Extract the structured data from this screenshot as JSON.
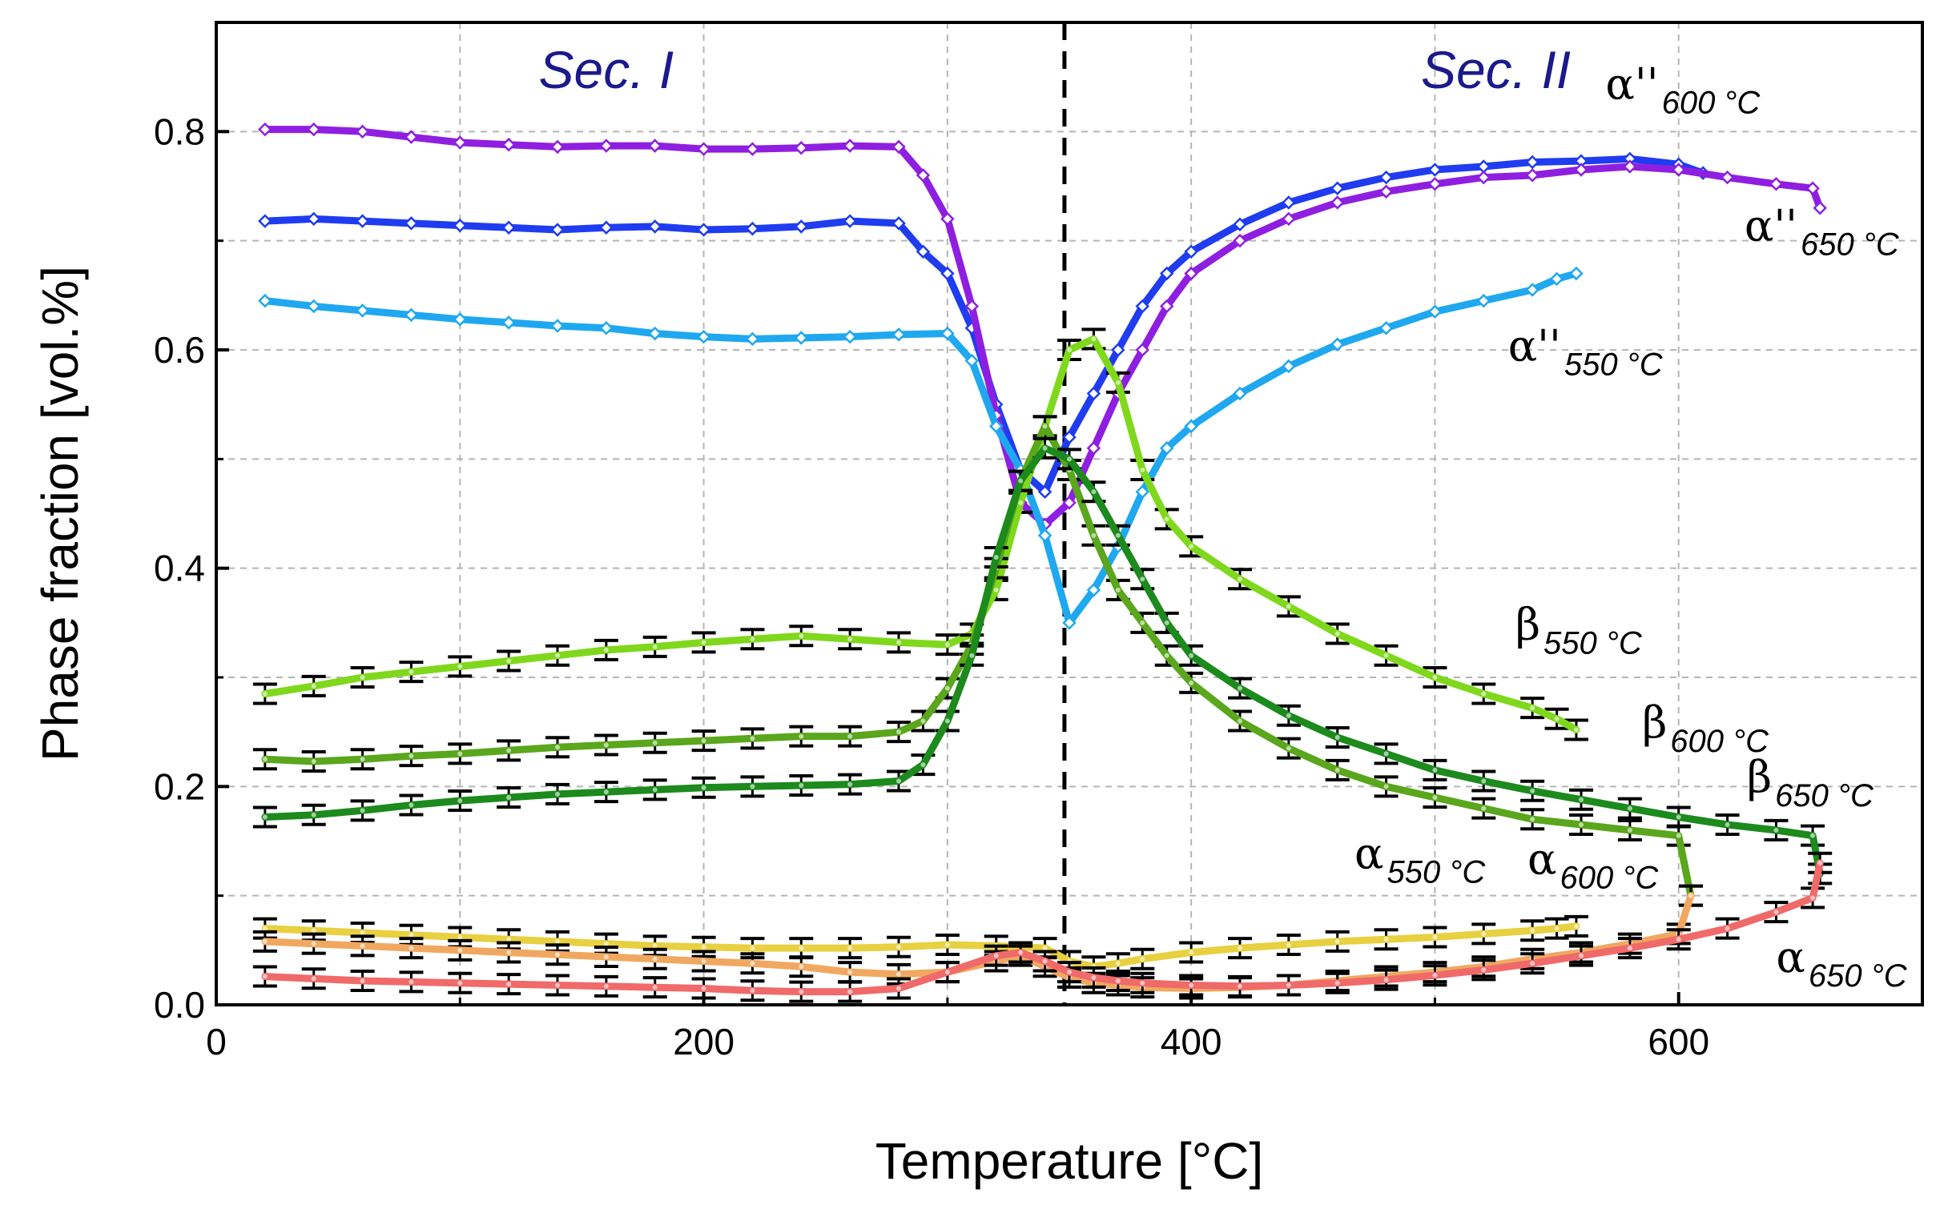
{
  "chart_data": {
    "type": "line",
    "title": "",
    "xlabel": "Temperature [°C]",
    "ylabel": "Phase fraction [vol.%]",
    "xlim": [
      0,
      700
    ],
    "ylim": [
      0,
      0.9
    ],
    "xticks": [
      0,
      200,
      400,
      600
    ],
    "xtick_labels": [
      "0",
      "200",
      "400",
      "600"
    ],
    "yticks": [
      0.0,
      0.2,
      0.4,
      0.6,
      0.8
    ],
    "ytick_labels": [
      "0.0",
      "0.2",
      "0.4",
      "0.6",
      "0.8"
    ],
    "grid": true,
    "divider_x": 348,
    "sections": [
      {
        "label": "Sec. I",
        "x": 160,
        "y": 0.84
      },
      {
        "label": "Sec. II",
        "x": 525,
        "y": 0.84
      }
    ],
    "series": [
      {
        "name": "α''600 °C",
        "label_main": "α''",
        "label_sub": "600 °C",
        "color": "#1f3cf0",
        "label_x": 570,
        "label_y": 0.83,
        "marker": true,
        "errbars": false,
        "x": [
          20,
          40,
          60,
          80,
          100,
          120,
          140,
          160,
          180,
          200,
          220,
          240,
          260,
          280,
          290,
          300,
          310,
          320,
          330,
          340,
          350,
          360,
          370,
          380,
          390,
          400,
          420,
          440,
          460,
          480,
          500,
          520,
          540,
          560,
          580,
          600,
          610
        ],
        "y": [
          0.718,
          0.72,
          0.718,
          0.716,
          0.714,
          0.712,
          0.71,
          0.712,
          0.713,
          0.71,
          0.711,
          0.713,
          0.718,
          0.716,
          0.69,
          0.67,
          0.62,
          0.55,
          0.49,
          0.47,
          0.52,
          0.56,
          0.6,
          0.64,
          0.67,
          0.69,
          0.715,
          0.735,
          0.748,
          0.758,
          0.765,
          0.768,
          0.772,
          0.773,
          0.775,
          0.77,
          0.762
        ]
      },
      {
        "name": "α''650 °C",
        "label_main": "α''",
        "label_sub": "650 °C",
        "color": "#8f1fe0",
        "label_x": 627,
        "label_y": 0.7,
        "marker": true,
        "errbars": false,
        "x": [
          20,
          40,
          60,
          80,
          100,
          120,
          140,
          160,
          180,
          200,
          220,
          240,
          260,
          280,
          290,
          300,
          310,
          320,
          330,
          340,
          350,
          360,
          370,
          380,
          390,
          400,
          420,
          440,
          460,
          480,
          500,
          520,
          540,
          560,
          580,
          600,
          620,
          640,
          655,
          658
        ],
        "y": [
          0.802,
          0.802,
          0.8,
          0.795,
          0.79,
          0.788,
          0.786,
          0.787,
          0.787,
          0.784,
          0.784,
          0.785,
          0.787,
          0.786,
          0.76,
          0.72,
          0.64,
          0.54,
          0.46,
          0.44,
          0.46,
          0.51,
          0.56,
          0.6,
          0.64,
          0.67,
          0.7,
          0.72,
          0.735,
          0.745,
          0.752,
          0.758,
          0.76,
          0.765,
          0.768,
          0.765,
          0.758,
          0.752,
          0.748,
          0.73
        ]
      },
      {
        "name": "α''550 °C",
        "label_main": "α''",
        "label_sub": "550 °C",
        "color": "#1fa8f0",
        "label_x": 530,
        "label_y": 0.59,
        "marker": true,
        "errbars": false,
        "x": [
          20,
          40,
          60,
          80,
          100,
          120,
          140,
          160,
          180,
          200,
          220,
          240,
          260,
          280,
          300,
          310,
          320,
          330,
          340,
          350,
          360,
          370,
          380,
          390,
          400,
          420,
          440,
          460,
          480,
          500,
          520,
          540,
          550,
          558
        ],
        "y": [
          0.645,
          0.64,
          0.636,
          0.632,
          0.628,
          0.625,
          0.622,
          0.62,
          0.615,
          0.612,
          0.61,
          0.611,
          0.612,
          0.614,
          0.615,
          0.59,
          0.53,
          0.49,
          0.43,
          0.35,
          0.38,
          0.42,
          0.47,
          0.51,
          0.53,
          0.56,
          0.585,
          0.605,
          0.62,
          0.635,
          0.645,
          0.655,
          0.665,
          0.67
        ]
      },
      {
        "name": "β550 °C",
        "label_main": "β",
        "label_sub": "550 °C",
        "color": "#7fd81c",
        "label_x": 533,
        "label_y": 0.335,
        "marker": false,
        "errbars": true,
        "x": [
          20,
          40,
          60,
          80,
          100,
          120,
          140,
          160,
          180,
          200,
          220,
          240,
          260,
          280,
          300,
          310,
          320,
          330,
          340,
          350,
          360,
          370,
          380,
          390,
          400,
          420,
          440,
          460,
          480,
          500,
          520,
          540,
          550,
          558
        ],
        "y": [
          0.285,
          0.292,
          0.3,
          0.305,
          0.31,
          0.315,
          0.32,
          0.325,
          0.328,
          0.332,
          0.335,
          0.338,
          0.335,
          0.332,
          0.33,
          0.34,
          0.38,
          0.46,
          0.53,
          0.6,
          0.61,
          0.57,
          0.49,
          0.445,
          0.42,
          0.39,
          0.365,
          0.34,
          0.32,
          0.3,
          0.285,
          0.272,
          0.262,
          0.252
        ]
      },
      {
        "name": "β600 °C",
        "label_main": "β",
        "label_sub": "600 °C",
        "color": "#5aa61c",
        "label_x": 585,
        "label_y": 0.245,
        "marker": false,
        "errbars": true,
        "x": [
          20,
          40,
          60,
          80,
          100,
          120,
          140,
          160,
          180,
          200,
          220,
          240,
          260,
          280,
          290,
          300,
          310,
          320,
          330,
          340,
          350,
          360,
          370,
          380,
          390,
          400,
          420,
          440,
          460,
          480,
          500,
          520,
          540,
          560,
          580,
          600,
          605
        ],
        "y": [
          0.225,
          0.223,
          0.225,
          0.228,
          0.23,
          0.233,
          0.236,
          0.238,
          0.24,
          0.242,
          0.244,
          0.246,
          0.246,
          0.25,
          0.26,
          0.29,
          0.33,
          0.4,
          0.48,
          0.53,
          0.49,
          0.43,
          0.38,
          0.35,
          0.32,
          0.295,
          0.26,
          0.235,
          0.215,
          0.2,
          0.19,
          0.18,
          0.17,
          0.165,
          0.16,
          0.155,
          0.1
        ]
      },
      {
        "name": "β650 °C",
        "label_main": "β",
        "label_sub": "650 °C",
        "color": "#1c8a1c",
        "label_x": 628,
        "label_y": 0.195,
        "marker": false,
        "errbars": true,
        "x": [
          20,
          40,
          60,
          80,
          100,
          120,
          140,
          160,
          180,
          200,
          220,
          240,
          260,
          280,
          290,
          300,
          310,
          320,
          330,
          340,
          350,
          360,
          370,
          380,
          390,
          400,
          420,
          440,
          460,
          480,
          500,
          520,
          540,
          560,
          580,
          600,
          620,
          640,
          655,
          658
        ],
        "y": [
          0.172,
          0.174,
          0.178,
          0.183,
          0.187,
          0.19,
          0.193,
          0.195,
          0.197,
          0.199,
          0.2,
          0.201,
          0.202,
          0.205,
          0.22,
          0.26,
          0.32,
          0.41,
          0.48,
          0.51,
          0.5,
          0.47,
          0.43,
          0.39,
          0.35,
          0.32,
          0.29,
          0.265,
          0.245,
          0.23,
          0.215,
          0.205,
          0.196,
          0.188,
          0.18,
          0.172,
          0.165,
          0.16,
          0.155,
          0.12
        ]
      },
      {
        "name": "α550 °C",
        "label_main": "α",
        "label_sub": "550 °C",
        "color": "#e8d040",
        "label_x": 467,
        "label_y": 0.125,
        "marker": false,
        "errbars": true,
        "x": [
          20,
          40,
          60,
          80,
          100,
          120,
          140,
          160,
          180,
          200,
          220,
          240,
          260,
          280,
          300,
          320,
          340,
          350,
          360,
          370,
          380,
          400,
          420,
          440,
          460,
          480,
          500,
          520,
          540,
          550,
          558
        ],
        "y": [
          0.07,
          0.068,
          0.066,
          0.064,
          0.062,
          0.06,
          0.058,
          0.056,
          0.054,
          0.053,
          0.052,
          0.052,
          0.052,
          0.053,
          0.055,
          0.054,
          0.052,
          0.04,
          0.035,
          0.038,
          0.042,
          0.048,
          0.052,
          0.055,
          0.058,
          0.06,
          0.062,
          0.065,
          0.068,
          0.07,
          0.072
        ]
      },
      {
        "name": "α600 °C",
        "label_main": "α",
        "label_sub": "600 °C",
        "color": "#f0a860",
        "label_x": 538,
        "label_y": 0.12,
        "marker": false,
        "errbars": true,
        "x": [
          20,
          40,
          60,
          80,
          100,
          120,
          140,
          160,
          180,
          200,
          220,
          240,
          260,
          280,
          300,
          320,
          330,
          340,
          350,
          360,
          370,
          380,
          400,
          420,
          440,
          460,
          480,
          500,
          520,
          540,
          560,
          580,
          600,
          605
        ],
        "y": [
          0.058,
          0.056,
          0.054,
          0.052,
          0.05,
          0.048,
          0.046,
          0.044,
          0.042,
          0.04,
          0.038,
          0.035,
          0.03,
          0.028,
          0.03,
          0.04,
          0.045,
          0.035,
          0.025,
          0.02,
          0.018,
          0.016,
          0.015,
          0.016,
          0.018,
          0.022,
          0.026,
          0.03,
          0.035,
          0.042,
          0.048,
          0.056,
          0.065,
          0.1
        ]
      },
      {
        "name": "α650 °C",
        "label_main": "α",
        "label_sub": "650 °C",
        "color": "#f06a6a",
        "label_x": 640,
        "label_y": 0.03,
        "marker": false,
        "errbars": true,
        "x": [
          20,
          40,
          60,
          80,
          100,
          120,
          140,
          160,
          180,
          200,
          220,
          240,
          260,
          280,
          300,
          320,
          330,
          340,
          350,
          360,
          370,
          380,
          400,
          420,
          440,
          460,
          480,
          500,
          520,
          540,
          560,
          580,
          600,
          620,
          640,
          655,
          658
        ],
        "y": [
          0.026,
          0.024,
          0.022,
          0.021,
          0.02,
          0.019,
          0.018,
          0.017,
          0.016,
          0.015,
          0.013,
          0.012,
          0.012,
          0.015,
          0.03,
          0.045,
          0.048,
          0.04,
          0.03,
          0.025,
          0.022,
          0.02,
          0.018,
          0.017,
          0.018,
          0.02,
          0.023,
          0.027,
          0.032,
          0.038,
          0.045,
          0.052,
          0.06,
          0.07,
          0.085,
          0.098,
          0.13
        ]
      }
    ]
  }
}
